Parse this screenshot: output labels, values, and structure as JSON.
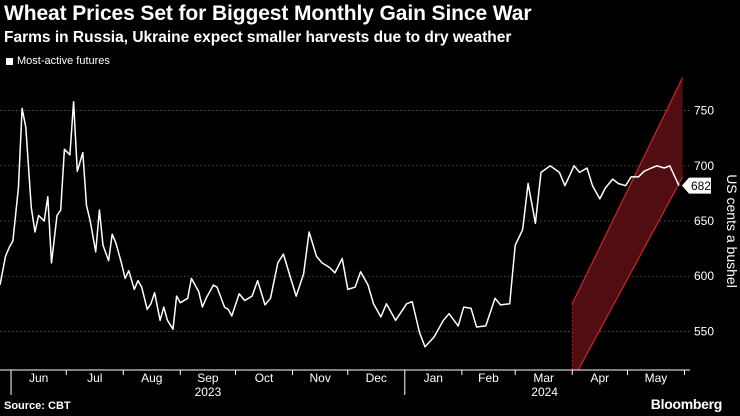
{
  "header": {
    "title": "Wheat Prices Set for Biggest Monthly Gain Since War",
    "subtitle": "Farms in Russia, Ukraine expect smaller harvests due to dry weather"
  },
  "footer": {
    "source": "Source: CBT",
    "brand": "Bloomberg"
  },
  "colors": {
    "background": "#000000",
    "line": "#ffffff",
    "channel_fill": "#5a0f14",
    "channel_edge": "#d0232b",
    "grid": "#6e6e6e"
  },
  "chart_data": {
    "type": "line",
    "title": "Wheat Prices Set for Biggest Monthly Gain Since War",
    "ylabel": "US cents a bushel",
    "xlabel": "",
    "ylim": [
      515,
      785
    ],
    "yticks": [
      550,
      600,
      650,
      700,
      750
    ],
    "legend": [
      "Most-active futures"
    ],
    "legend_position": "top-left",
    "x_month_labels": [
      "Jun",
      "Jul",
      "Aug",
      "Sep",
      "Oct",
      "Nov",
      "Dec",
      "Jan",
      "Feb",
      "Mar",
      "Apr",
      "May"
    ],
    "x_year_labels": [
      "2023",
      "2024"
    ],
    "last_value_label": "682",
    "trend_channel": {
      "start": "2024-04-01",
      "end": "2024-05-31",
      "upper": [
        575,
        780
      ],
      "lower": [
        505,
        690
      ]
    },
    "series": [
      {
        "name": "Most-active futures",
        "x": [
          "2023-05-26",
          "2023-05-29",
          "2023-05-31",
          "2023-06-02",
          "2023-06-05",
          "2023-06-07",
          "2023-06-09",
          "2023-06-12",
          "2023-06-14",
          "2023-06-16",
          "2023-06-19",
          "2023-06-21",
          "2023-06-23",
          "2023-06-26",
          "2023-06-28",
          "2023-06-30",
          "2023-07-03",
          "2023-07-05",
          "2023-07-07",
          "2023-07-10",
          "2023-07-12",
          "2023-07-14",
          "2023-07-17",
          "2023-07-19",
          "2023-07-21",
          "2023-07-24",
          "2023-07-26",
          "2023-07-28",
          "2023-07-31",
          "2023-08-02",
          "2023-08-04",
          "2023-08-07",
          "2023-08-09",
          "2023-08-11",
          "2023-08-14",
          "2023-08-16",
          "2023-08-18",
          "2023-08-21",
          "2023-08-23",
          "2023-08-25",
          "2023-08-28",
          "2023-08-30",
          "2023-09-01",
          "2023-09-05",
          "2023-09-07",
          "2023-09-11",
          "2023-09-13",
          "2023-09-15",
          "2023-09-19",
          "2023-09-21",
          "2023-09-25",
          "2023-09-27",
          "2023-09-29",
          "2023-10-03",
          "2023-10-06",
          "2023-10-10",
          "2023-10-13",
          "2023-10-17",
          "2023-10-20",
          "2023-10-24",
          "2023-10-27",
          "2023-10-31",
          "2023-11-03",
          "2023-11-07",
          "2023-11-10",
          "2023-11-14",
          "2023-11-17",
          "2023-11-21",
          "2023-11-24",
          "2023-11-28",
          "2023-12-01",
          "2023-12-05",
          "2023-12-08",
          "2023-12-12",
          "2023-12-15",
          "2023-12-19",
          "2023-12-22",
          "2023-12-27",
          "2024-01-02",
          "2024-01-05",
          "2024-01-09",
          "2024-01-12",
          "2024-01-17",
          "2024-01-22",
          "2024-01-25",
          "2024-01-30",
          "2024-02-02",
          "2024-02-06",
          "2024-02-09",
          "2024-02-14",
          "2024-02-19",
          "2024-02-22",
          "2024-02-27",
          "2024-03-01",
          "2024-03-05",
          "2024-03-08",
          "2024-03-12",
          "2024-03-15",
          "2024-03-20",
          "2024-03-25",
          "2024-03-28",
          "2024-04-02",
          "2024-04-05",
          "2024-04-09",
          "2024-04-12",
          "2024-04-16",
          "2024-04-19",
          "2024-04-23",
          "2024-04-26",
          "2024-04-30",
          "2024-05-03",
          "2024-05-07",
          "2024-05-10",
          "2024-05-14",
          "2024-05-17",
          "2024-05-21",
          "2024-05-24",
          "2024-05-29"
        ],
        "values": [
          592,
          618,
          626,
          632,
          680,
          752,
          735,
          662,
          640,
          655,
          650,
          672,
          612,
          655,
          660,
          715,
          710,
          758,
          695,
          712,
          664,
          650,
          622,
          660,
          628,
          614,
          638,
          630,
          612,
          598,
          605,
          588,
          596,
          590,
          570,
          575,
          585,
          560,
          572,
          560,
          552,
          582,
          576,
          580,
          598,
          586,
          572,
          580,
          592,
          590,
          572,
          570,
          564,
          584,
          578,
          582,
          596,
          574,
          580,
          612,
          620,
          598,
          582,
          602,
          640,
          618,
          612,
          608,
          603,
          616,
          588,
          590,
          604,
          592,
          575,
          563,
          575,
          560,
          575,
          577,
          549,
          536,
          545,
          560,
          566,
          555,
          572,
          571,
          554,
          555,
          580,
          574,
          575,
          628,
          642,
          684,
          648,
          694,
          700,
          694,
          682,
          700,
          694,
          698,
          682,
          670,
          680,
          688,
          684,
          682,
          690,
          690,
          695,
          698,
          700,
          698,
          700,
          682
        ]
      }
    ]
  }
}
